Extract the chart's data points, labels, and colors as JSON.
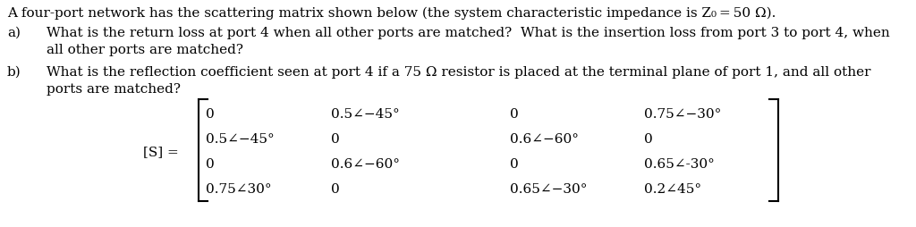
{
  "title_line": "A four-port network has the scattering matrix shown below (the system characteristic impedance is Z₀ = 50 Ω).",
  "part_a_line1": "What is the return loss at port 4 when all other ports are matched?  What is the insertion loss from port 3 to port 4, when",
  "part_a_line2": "all other ports are matched?",
  "part_b_line1": "What is the reflection coefficient seen at port 4 if a 75 Ω resistor is placed at the terminal plane of port 1, and all other",
  "part_b_line2": "ports are matched?",
  "label_a": "a)",
  "label_b": "b)",
  "matrix_label": "[S] =",
  "matrix": [
    [
      "0",
      "0.5∠−45°",
      "0",
      "0.75∠−30°"
    ],
    [
      "0.5∠−45°",
      "0",
      "0.6∠−60°",
      "0"
    ],
    [
      "0",
      "0.6∠−60°",
      "0",
      "0.65∠-30°"
    ],
    [
      "0.75∠30°",
      "0",
      "0.65∠−30°",
      "0.2∠45°"
    ]
  ],
  "bg_color": "#ffffff",
  "text_color": "#000000",
  "font_size": 11.0,
  "matrix_font_size": 11.0
}
